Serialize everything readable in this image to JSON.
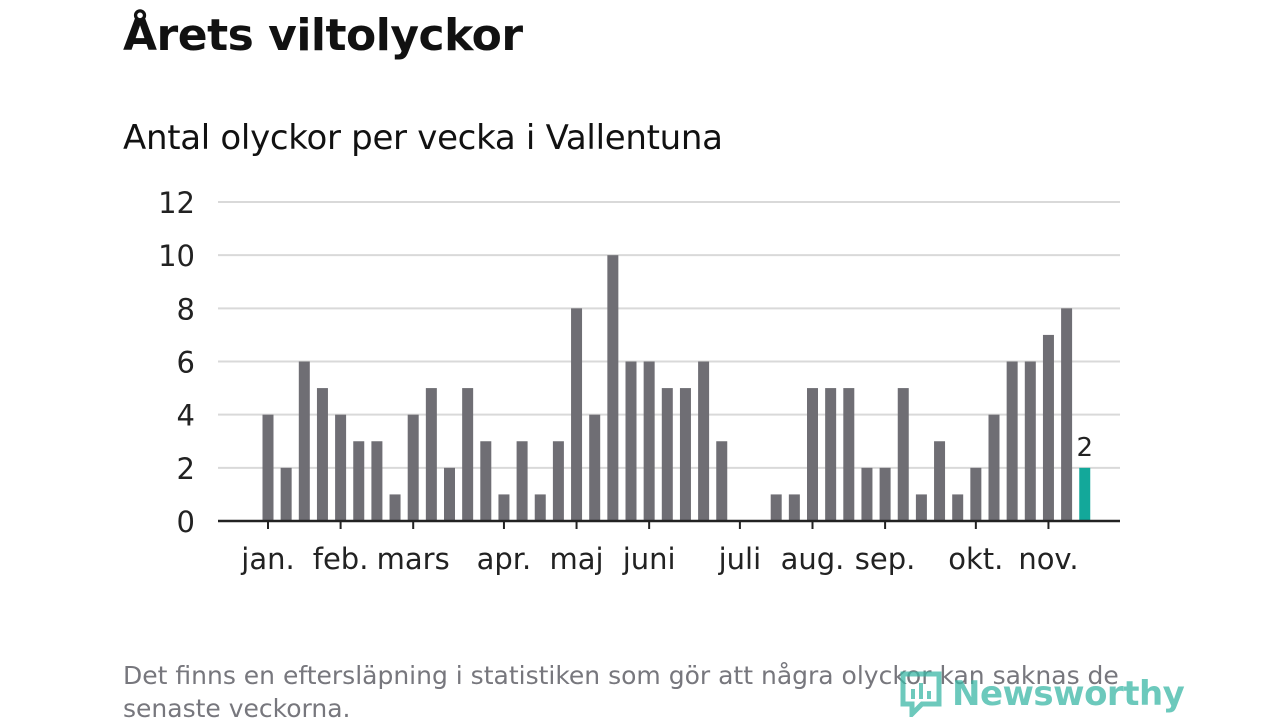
{
  "title": "Årets viltolyckor",
  "subtitle": "Antal olyckor per vecka i Vallentuna",
  "footnote": "Det finns en eftersläpning i statistiken som gör att några olyckor kan saknas de senaste veckorna.",
  "brand": {
    "name": "Newsworthy",
    "icon": "newsworthy-logo-icon",
    "color": "#3cb7a6"
  },
  "chart_data": {
    "type": "bar",
    "ylim": [
      0,
      12
    ],
    "yticks": [
      "0",
      "2",
      "4",
      "6",
      "8",
      "10",
      "12"
    ],
    "grid": true,
    "x": [
      1,
      2,
      3,
      4,
      5,
      6,
      7,
      8,
      9,
      10,
      11,
      12,
      13,
      14,
      15,
      16,
      17,
      18,
      19,
      20,
      21,
      22,
      23,
      24,
      25,
      26,
      27,
      28,
      29,
      30,
      31,
      32,
      33,
      34,
      35,
      36,
      37,
      38,
      39,
      40,
      41,
      42,
      43,
      44,
      45,
      46
    ],
    "values": [
      4,
      2,
      6,
      5,
      4,
      3,
      3,
      1,
      4,
      5,
      2,
      5,
      3,
      1,
      3,
      1,
      3,
      8,
      4,
      10,
      6,
      6,
      5,
      5,
      6,
      3,
      0,
      0,
      1,
      1,
      5,
      5,
      5,
      2,
      2,
      5,
      1,
      3,
      1,
      2,
      4,
      6,
      6,
      7,
      8,
      2
    ],
    "highlight_index": 45,
    "highlight_label": "2",
    "month_labels": [
      {
        "label": "jan.",
        "week": 1
      },
      {
        "label": "feb.",
        "week": 5
      },
      {
        "label": "mars",
        "week": 9
      },
      {
        "label": "apr.",
        "week": 14
      },
      {
        "label": "maj",
        "week": 18
      },
      {
        "label": "juni",
        "week": 22
      },
      {
        "label": "juli",
        "week": 27
      },
      {
        "label": "aug.",
        "week": 31
      },
      {
        "label": "sep.",
        "week": 35
      },
      {
        "label": "okt.",
        "week": 40
      },
      {
        "label": "nov.",
        "week": 44
      }
    ],
    "colors": {
      "bar": "#6f6e74",
      "highlight": "#13a89a",
      "grid": "#d9d9d9",
      "axis": "#222222"
    }
  }
}
